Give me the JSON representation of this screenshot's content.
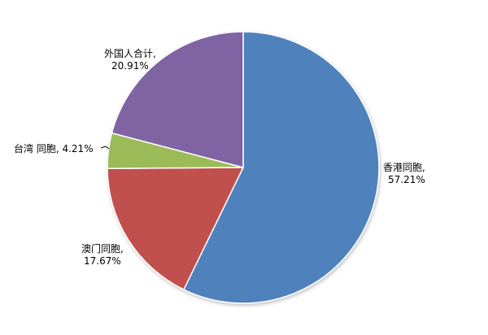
{
  "chart_data": {
    "type": "pie",
    "start": "top",
    "direction": "clockwise",
    "slices": [
      {
        "name": "香港同胞",
        "value": 57.21,
        "label_name": "香港同胞,",
        "label_value": "57.21%",
        "color": "#4F81BD"
      },
      {
        "name": "澳门同胞",
        "value": 17.67,
        "label_name": "澳门同胞,",
        "label_value": "17.67%",
        "color": "#C0504D"
      },
      {
        "name": "台湾 同胞",
        "value": 4.21,
        "label_name": "台湾 同胞,",
        "label_value": "4.21%",
        "color": "#9BBB59"
      },
      {
        "name": "外国人合计",
        "value": 20.91,
        "label_name": "外国人合计,",
        "label_value": "20.91%",
        "color": "#8064A2"
      }
    ]
  }
}
